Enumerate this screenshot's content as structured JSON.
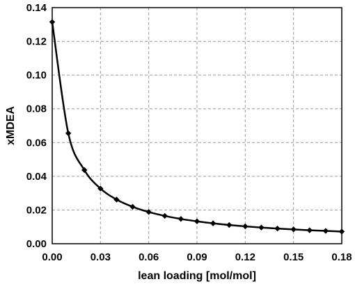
{
  "chart_data": {
    "type": "line",
    "title": "",
    "xlabel": "lean loading [mol/mol]",
    "ylabel": "xMDEA",
    "xlim": [
      0.0,
      0.18
    ],
    "ylim": [
      0.0,
      0.14
    ],
    "x_ticks": [
      "0.00",
      "0.03",
      "0.06",
      "0.09",
      "0.12",
      "0.15",
      "0.18"
    ],
    "y_ticks": [
      "0.00",
      "0.02",
      "0.04",
      "0.06",
      "0.08",
      "0.10",
      "0.12",
      "0.14"
    ],
    "grid": true,
    "grid_style": "dashed",
    "legend": "none",
    "marker": "diamond",
    "colors": {
      "line": "#000000",
      "marker": "#000000",
      "grid": "#9a9a9a",
      "frame": "#000000"
    },
    "series": [
      {
        "x": [
          0.0,
          0.01,
          0.02,
          0.03,
          0.04,
          0.05,
          0.06,
          0.07,
          0.08,
          0.09,
          0.1,
          0.11,
          0.12,
          0.13,
          0.14,
          0.15,
          0.16,
          0.17,
          0.18
        ],
        "values": [
          0.1315,
          0.0655,
          0.0437,
          0.0327,
          0.0262,
          0.0219,
          0.0188,
          0.0165,
          0.0147,
          0.0133,
          0.0121,
          0.0111,
          0.0103,
          0.0096,
          0.009,
          0.0085,
          0.008,
          0.0076,
          0.0072
        ]
      }
    ]
  }
}
